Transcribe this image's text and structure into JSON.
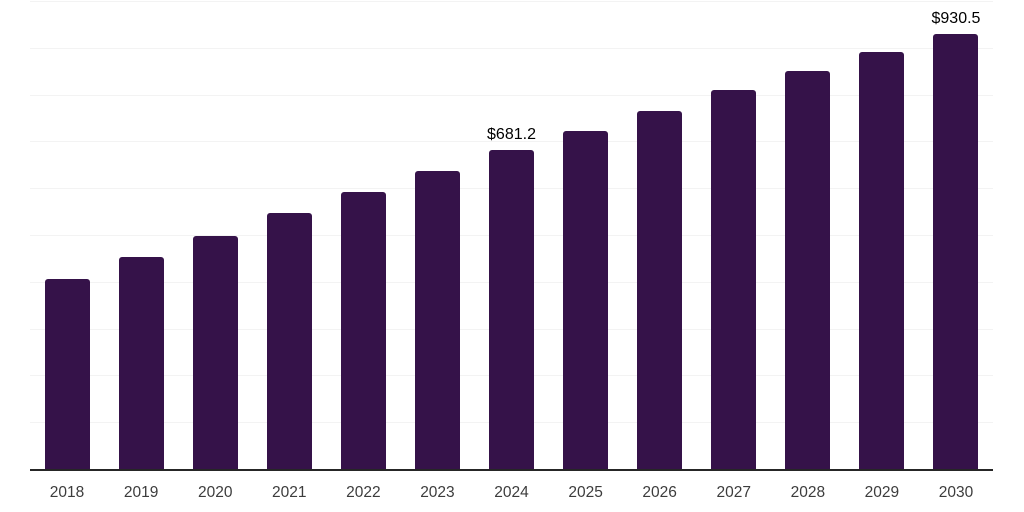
{
  "chart_data": {
    "type": "bar",
    "title": "",
    "categories": [
      "2018",
      "2019",
      "2020",
      "2021",
      "2022",
      "2023",
      "2024",
      "2025",
      "2026",
      "2027",
      "2028",
      "2029",
      "2030"
    ],
    "values": [
      406,
      454,
      498,
      546,
      591,
      637,
      681.2,
      723,
      766,
      810,
      850,
      890,
      930.5
    ],
    "point_labels": [
      "",
      "",
      "",
      "",
      "",
      "",
      "$681.2",
      "",
      "",
      "",
      "",
      "",
      "$930.5"
    ],
    "xlabel": "",
    "ylabel": "",
    "ylim": [
      0,
      1000
    ],
    "grid_step": 100,
    "grid": true,
    "legend": false,
    "colors": {
      "bar": "#351249",
      "gridline": "#f3f3f3",
      "axis_line": "#262626",
      "tick_label": "#3c3c3c",
      "data_label": "#000000",
      "background": "#ffffff"
    }
  }
}
